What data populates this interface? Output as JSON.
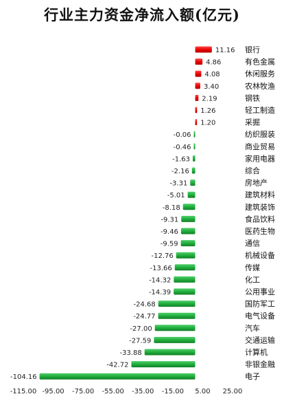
{
  "chart_data": {
    "type": "bar",
    "orientation": "horizontal",
    "title": "行业主力资金净流入额(亿元)",
    "categories": [
      "银行",
      "有色金属",
      "休闲服务",
      "农林牧渔",
      "钢铁",
      "轻工制造",
      "采掘",
      "纺织服装",
      "商业贸易",
      "家用电器",
      "综合",
      "房地产",
      "建筑材料",
      "建筑装饰",
      "食品饮料",
      "医药生物",
      "通信",
      "机械设备",
      "传媒",
      "化工",
      "公用事业",
      "国防军工",
      "电气设备",
      "汽车",
      "交通运输",
      "计算机",
      "非银金融",
      "电子"
    ],
    "values": [
      11.16,
      4.86,
      4.08,
      3.4,
      2.19,
      1.26,
      1.2,
      -0.06,
      -0.46,
      -1.63,
      -2.16,
      -3.31,
      -5.01,
      -8.18,
      -9.31,
      -9.46,
      -9.59,
      -12.76,
      -13.66,
      -14.32,
      -14.39,
      -24.68,
      -24.77,
      -27.0,
      -27.59,
      -33.88,
      -42.72,
      -104.16
    ],
    "value_labels": [
      "11.16",
      "4.86",
      "4.08",
      "3.40",
      "2.19",
      "1.26",
      "1.20",
      "-0.06",
      "-0.46",
      "-1.63",
      "-2.16",
      "-3.31",
      "-5.01",
      "-8.18",
      "-9.31",
      "-9.46",
      "-9.59",
      "-12.76",
      "-13.66",
      "-14.32",
      "-14.39",
      "-24.68",
      "-24.77",
      "-27.00",
      "-27.59",
      "-33.88",
      "-42.72",
      "-104.16"
    ],
    "xlim": [
      -115,
      25
    ],
    "xticks": [
      "-115.00",
      "-95.00",
      "-75.00",
      "-55.00",
      "-35.00",
      "-15.00",
      "5.00",
      "25.00"
    ],
    "xtick_values": [
      -115,
      -95,
      -75,
      -55,
      -35,
      -15,
      5,
      25
    ],
    "grid": false,
    "colors": {
      "positive": "#e60000",
      "negative": "#1faa3a"
    }
  }
}
